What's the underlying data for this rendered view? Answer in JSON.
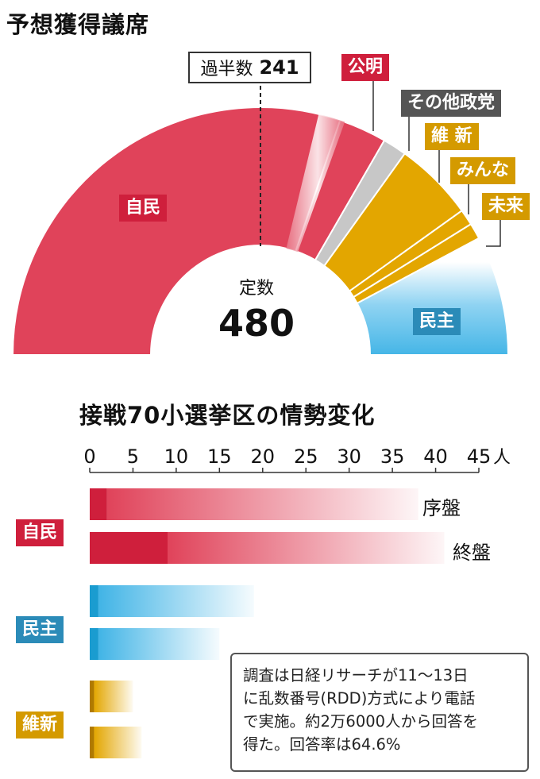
{
  "seat_chart_title": "予想獲得議席",
  "majority_label": "過半数",
  "majority_value": "241",
  "total_label": "定数",
  "total_value": "480",
  "bar_chart_title": "接戦70小選挙区の情勢変化",
  "unit": "人",
  "note_lines": [
    "調査は日経リサーチが11～13日",
    "に乱数番号(RDD)方式により電話",
    "で実施。約2万6000人から回答を",
    "得た。回答率は64.6%"
  ],
  "colors": {
    "ldp": "#e0435a",
    "ldp_dark": "#cf1f3c",
    "komeito": "#e0435a",
    "others": "#c7c7c7",
    "ishin": "#e3a600",
    "minna": "#e3a600",
    "mirai": "#e3a600",
    "dpj": "#41b4e6",
    "dpj_dark": "#1a9cd0"
  },
  "chart_data": [
    {
      "type": "pie",
      "shape": "semicircle",
      "title": "予想獲得議席",
      "total": 480,
      "majority_line": 241,
      "slices": [
        {
          "label": "自民",
          "value": 290,
          "tolerance_wedge": true,
          "color": "#e0435a"
        },
        {
          "label": "公明",
          "value": 30,
          "color": "#e0435a"
        },
        {
          "label": "その他政党",
          "value": 15,
          "color": "#c7c7c7"
        },
        {
          "label": "維 新",
          "value": 50,
          "color": "#e3a600"
        },
        {
          "label": "みんな",
          "value": 10,
          "color": "#e3a600"
        },
        {
          "label": "未来",
          "value": 10,
          "color": "#e3a600"
        },
        {
          "label": "民主",
          "value": 75,
          "color": "#41b4e6",
          "tolerance_wedge": true
        }
      ]
    },
    {
      "type": "bar",
      "orientation": "horizontal",
      "title": "接戦70小選挙区の情勢変化",
      "xlim": [
        0,
        45
      ],
      "x_ticks": [
        "0",
        "5",
        "10",
        "15",
        "20",
        "25",
        "30",
        "35",
        "40",
        "45"
      ],
      "unit": "人",
      "series_labels": [
        "序盤",
        "終盤"
      ],
      "groups": [
        {
          "label": "自民",
          "color": "#e0435a",
          "bars": [
            {
              "period": "序盤",
              "solid": 2,
              "range_end": 38
            },
            {
              "period": "終盤",
              "solid": 9,
              "range_end": 41
            }
          ]
        },
        {
          "label": "民主",
          "color": "#41b4e6",
          "bars": [
            {
              "period": "序盤",
              "solid": 1,
              "range_end": 19
            },
            {
              "period": "終盤",
              "solid": 1,
              "range_end": 15
            }
          ]
        },
        {
          "label": "維新",
          "color": "#e3a600",
          "bars": [
            {
              "period": "序盤",
              "solid": 0.5,
              "range_end": 5
            },
            {
              "period": "終盤",
              "solid": 0.5,
              "range_end": 6
            }
          ]
        }
      ]
    }
  ]
}
